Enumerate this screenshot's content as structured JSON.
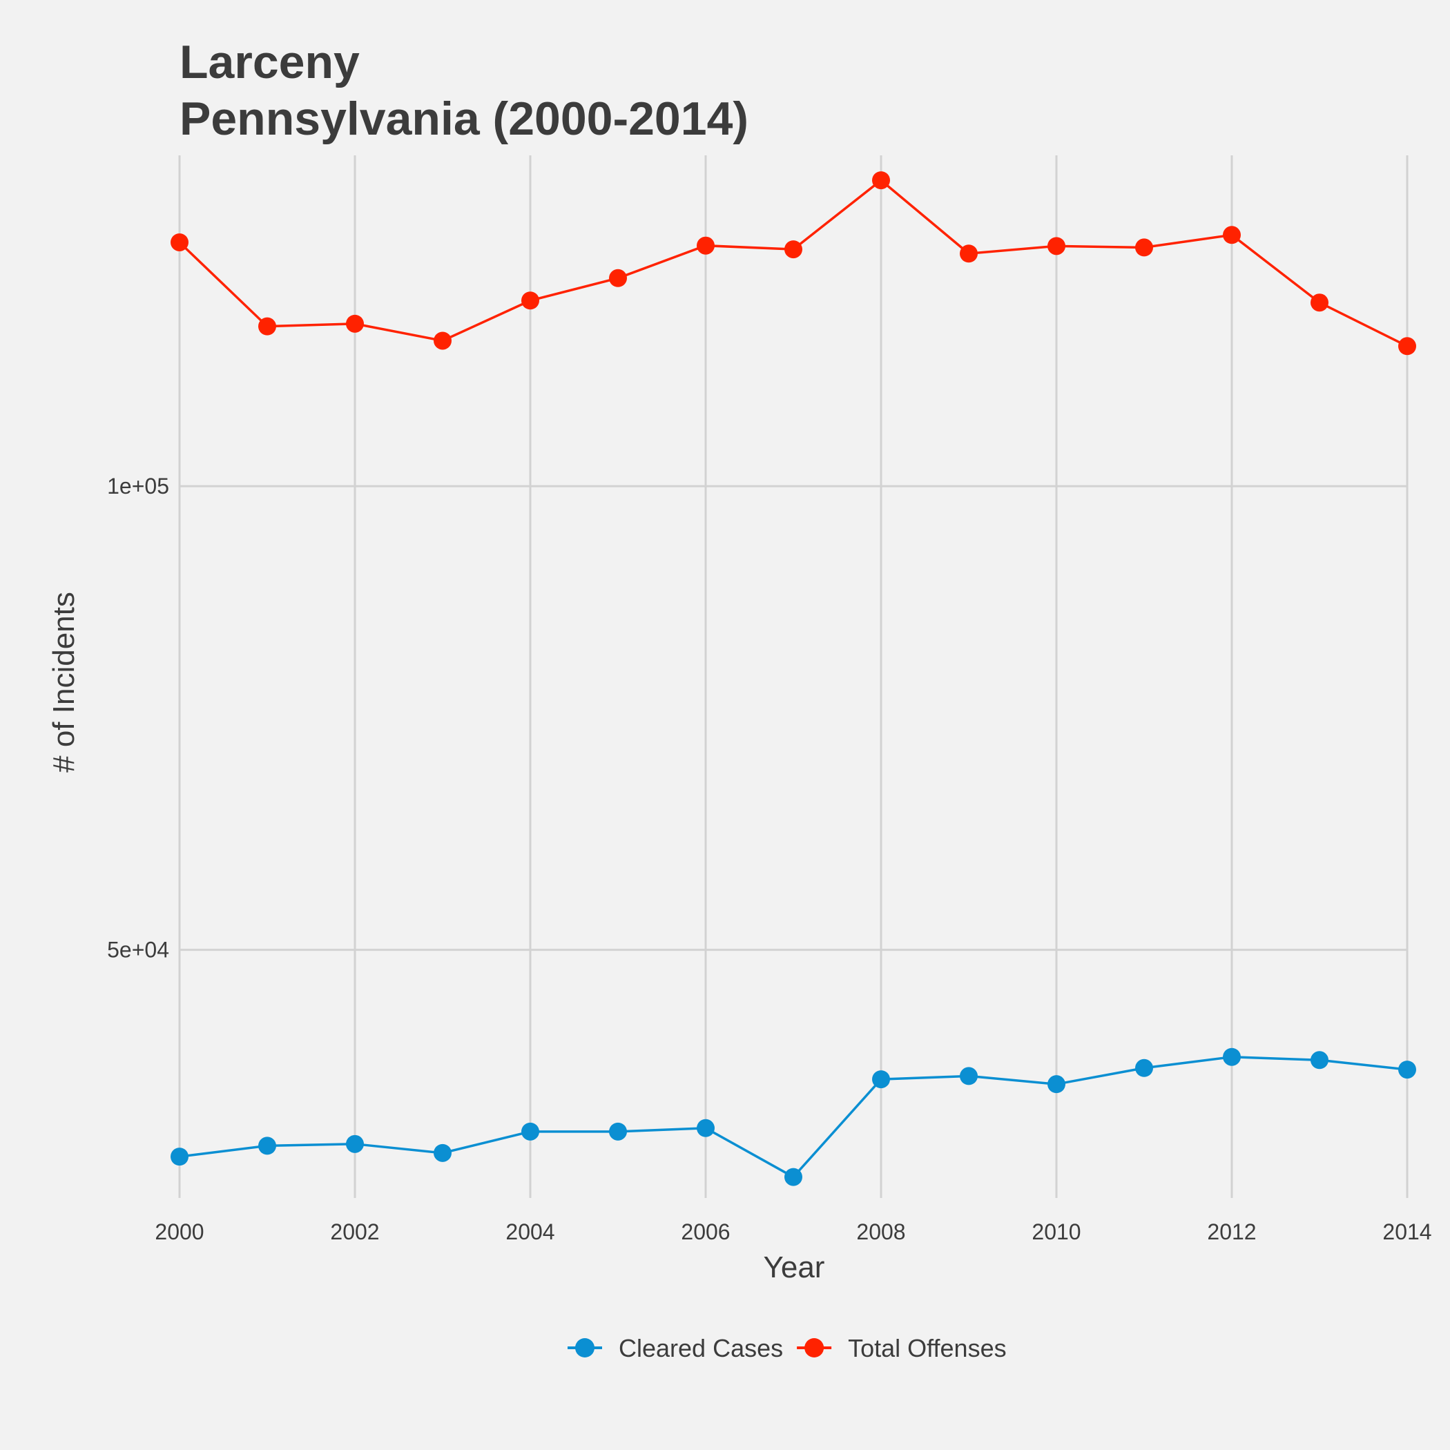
{
  "chart_data": {
    "type": "line",
    "title_lines": [
      "Larceny",
      "Pennsylvania (2000-2014)"
    ],
    "xlabel": "Year",
    "ylabel": "# of Incidents",
    "y_scale": "log",
    "x": [
      2000,
      2001,
      2002,
      2003,
      2004,
      2005,
      2006,
      2007,
      2008,
      2009,
      2010,
      2011,
      2012,
      2013,
      2014
    ],
    "xlim": [
      2000,
      2014
    ],
    "ylim": [
      34500,
      164000
    ],
    "x_ticks": [
      2000,
      2002,
      2004,
      2006,
      2008,
      2010,
      2012,
      2014
    ],
    "y_ticks": [
      {
        "value": 50000,
        "label": "5e+04"
      },
      {
        "value": 100000,
        "label": "1e+05"
      }
    ],
    "grid": true,
    "legend_position": "bottom",
    "series": [
      {
        "name": "Cleared Cases",
        "color": "#0b8fd2",
        "values": [
          36700,
          37300,
          37400,
          36900,
          38100,
          38100,
          38300,
          35600,
          41200,
          41400,
          40900,
          41900,
          42600,
          42400,
          41800
        ]
      },
      {
        "name": "Total Offenses",
        "color": "#ff2200",
        "values": [
          144000,
          127000,
          127500,
          124300,
          132000,
          136500,
          143300,
          142500,
          158000,
          141600,
          143200,
          142900,
          145600,
          131600,
          123300
        ]
      }
    ]
  }
}
